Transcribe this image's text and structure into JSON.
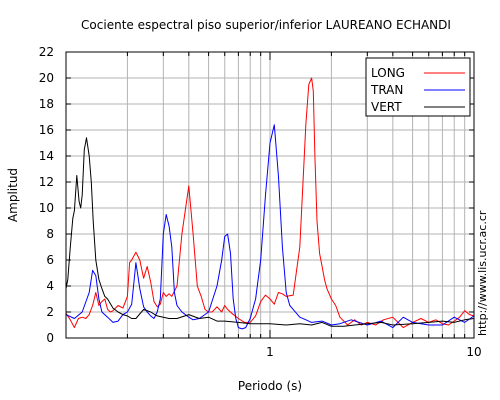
{
  "chart_data": {
    "type": "line",
    "title": "Cociente espectral piso superior/inferior LAUREANO ECHANDI",
    "xlabel": "Periodo (s)",
    "ylabel": "Amplitud",
    "xscale": "log",
    "xlim": [
      0.1,
      10
    ],
    "ylim": [
      0,
      22
    ],
    "yticks": [
      0,
      2,
      4,
      6,
      8,
      10,
      12,
      14,
      16,
      18,
      20,
      22
    ],
    "xtick_labels": [
      "1",
      "10"
    ],
    "grid": true,
    "legend": "top-right",
    "credit": "http://www.lis.ucr.ac.cr",
    "series": [
      {
        "name": "LONG",
        "color": "#ff0000",
        "x": [
          0.1,
          0.105,
          0.11,
          0.115,
          0.12,
          0.125,
          0.13,
          0.135,
          0.14,
          0.145,
          0.15,
          0.155,
          0.16,
          0.165,
          0.17,
          0.18,
          0.19,
          0.2,
          0.205,
          0.21,
          0.22,
          0.23,
          0.24,
          0.25,
          0.26,
          0.27,
          0.28,
          0.29,
          0.3,
          0.31,
          0.32,
          0.33,
          0.35,
          0.37,
          0.4,
          0.42,
          0.44,
          0.46,
          0.48,
          0.5,
          0.52,
          0.55,
          0.58,
          0.6,
          0.62,
          0.65,
          0.7,
          0.75,
          0.8,
          0.85,
          0.9,
          0.95,
          1.0,
          1.05,
          1.1,
          1.15,
          1.2,
          1.3,
          1.4,
          1.5,
          1.55,
          1.6,
          1.63,
          1.66,
          1.7,
          1.75,
          1.8,
          1.85,
          1.9,
          2.0,
          2.1,
          2.2,
          2.4,
          2.6,
          2.8,
          3.0,
          3.3,
          3.6,
          4.0,
          4.5,
          5.0,
          5.5,
          6.0,
          6.5,
          7.0,
          7.5,
          8.0,
          8.5,
          9.0,
          9.5,
          10
        ],
        "y": [
          1.9,
          1.4,
          0.8,
          1.5,
          1.6,
          1.5,
          1.8,
          2.5,
          3.5,
          2.5,
          2.8,
          3.0,
          2.2,
          2.0,
          2.1,
          2.5,
          2.3,
          3.2,
          5.8,
          6.0,
          6.6,
          6.0,
          4.6,
          5.5,
          4.3,
          2.8,
          2.4,
          2.6,
          3.5,
          3.2,
          3.4,
          3.2,
          4.0,
          8.0,
          11.7,
          8.0,
          4.0,
          3.2,
          2.2,
          2.0,
          2.0,
          2.4,
          2.0,
          2.5,
          2.2,
          1.9,
          1.5,
          1.2,
          1.2,
          1.7,
          2.8,
          3.3,
          3.0,
          2.6,
          3.5,
          3.4,
          3.2,
          3.3,
          7.0,
          16.5,
          19.5,
          20.0,
          19.0,
          14.0,
          9.0,
          6.5,
          5.5,
          4.5,
          3.8,
          3.0,
          2.5,
          1.6,
          1.0,
          1.4,
          1.0,
          1.2,
          1.0,
          1.4,
          1.6,
          0.8,
          1.2,
          1.5,
          1.2,
          1.4,
          1.1,
          1.0,
          1.3,
          1.6,
          2.1,
          1.8,
          1.7
        ]
      },
      {
        "name": "TRAN",
        "color": "#0000ff",
        "x": [
          0.1,
          0.11,
          0.12,
          0.13,
          0.135,
          0.14,
          0.145,
          0.15,
          0.16,
          0.17,
          0.18,
          0.19,
          0.2,
          0.21,
          0.22,
          0.23,
          0.24,
          0.25,
          0.26,
          0.27,
          0.28,
          0.29,
          0.3,
          0.31,
          0.32,
          0.33,
          0.34,
          0.35,
          0.37,
          0.4,
          0.42,
          0.45,
          0.5,
          0.55,
          0.58,
          0.6,
          0.62,
          0.64,
          0.66,
          0.68,
          0.7,
          0.73,
          0.76,
          0.8,
          0.85,
          0.9,
          0.95,
          1.0,
          1.05,
          1.1,
          1.15,
          1.2,
          1.25,
          1.3,
          1.4,
          1.5,
          1.6,
          1.8,
          2.0,
          2.2,
          2.5,
          3.0,
          3.5,
          4.0,
          4.5,
          5.0,
          6.0,
          7.0,
          8.0,
          9.0,
          10
        ],
        "y": [
          1.8,
          1.5,
          2.0,
          3.5,
          5.2,
          4.8,
          3.0,
          2.0,
          1.6,
          1.2,
          1.3,
          1.8,
          2.0,
          2.6,
          5.8,
          3.8,
          2.4,
          2.0,
          1.7,
          1.5,
          2.0,
          3.0,
          8.0,
          9.5,
          8.6,
          7.0,
          3.5,
          2.5,
          2.0,
          1.6,
          1.4,
          1.5,
          2.0,
          4.0,
          6.0,
          7.8,
          8.0,
          6.5,
          3.0,
          1.5,
          0.8,
          0.7,
          0.8,
          1.5,
          3.0,
          6.0,
          11.0,
          15.0,
          16.4,
          12.5,
          7.0,
          3.5,
          2.5,
          2.2,
          1.6,
          1.4,
          1.2,
          1.3,
          1.0,
          1.1,
          1.4,
          1.0,
          1.3,
          0.8,
          1.6,
          1.2,
          1.0,
          1.0,
          1.6,
          1.2,
          1.7
        ]
      },
      {
        "name": "VERT",
        "color": "#000000",
        "x": [
          0.1,
          0.102,
          0.105,
          0.108,
          0.11,
          0.113,
          0.116,
          0.118,
          0.12,
          0.123,
          0.126,
          0.13,
          0.133,
          0.136,
          0.14,
          0.145,
          0.15,
          0.155,
          0.16,
          0.17,
          0.18,
          0.19,
          0.2,
          0.21,
          0.22,
          0.24,
          0.26,
          0.28,
          0.3,
          0.32,
          0.35,
          0.4,
          0.45,
          0.5,
          0.55,
          0.6,
          0.7,
          0.8,
          1.0,
          1.2,
          1.4,
          1.6,
          1.8,
          2.0,
          2.3,
          2.6,
          3.0,
          3.5,
          4.0,
          5.0,
          6.0,
          7.0,
          8.0,
          9.0,
          10
        ],
        "y": [
          3.8,
          4.5,
          7.0,
          9.2,
          9.8,
          12.5,
          10.5,
          10.0,
          11.0,
          14.5,
          15.4,
          14.0,
          12.0,
          9.0,
          6.0,
          4.5,
          3.8,
          3.2,
          3.0,
          2.3,
          2.0,
          1.8,
          1.7,
          1.5,
          1.5,
          2.2,
          2.0,
          1.7,
          1.6,
          1.5,
          1.5,
          1.8,
          1.5,
          1.6,
          1.3,
          1.3,
          1.2,
          1.1,
          1.1,
          1.0,
          1.1,
          1.0,
          1.2,
          0.9,
          0.9,
          1.0,
          1.1,
          1.2,
          1.0,
          1.1,
          1.2,
          1.3,
          1.2,
          1.4,
          1.5
        ]
      }
    ]
  }
}
